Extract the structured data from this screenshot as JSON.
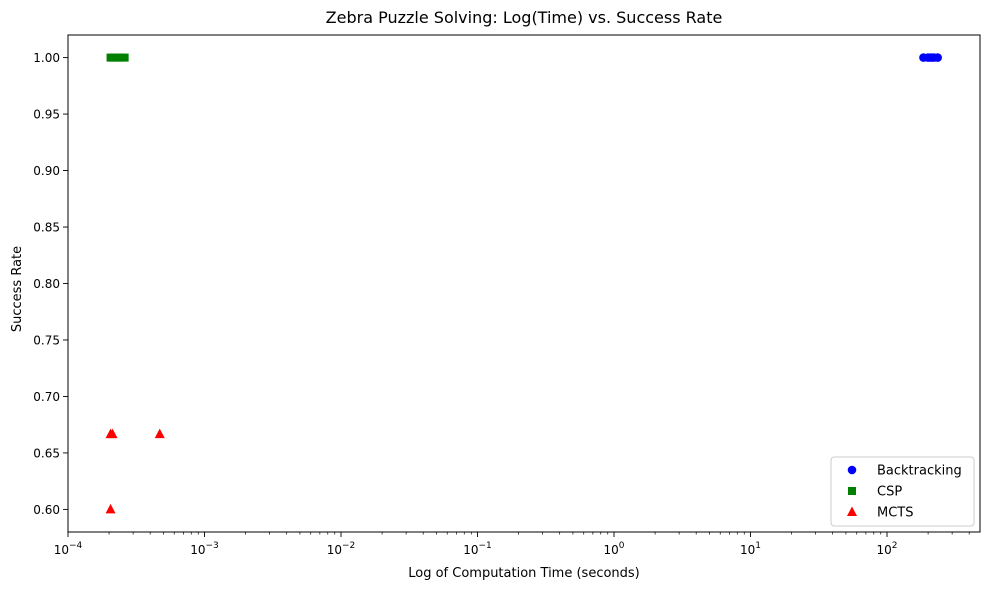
{
  "chart_data": {
    "type": "scatter",
    "title": "Zebra Puzzle Solving: Log(Time) vs. Success Rate",
    "xlabel": "Log of Computation Time (seconds)",
    "ylabel": "Success Rate",
    "xscale": "log",
    "xlim": [
      0.0001,
      480
    ],
    "ylim": [
      0.58,
      1.02
    ],
    "grid": false,
    "legend_position": "lower-right",
    "x_ticks": [
      {
        "value": 0.0001,
        "base": "10",
        "exp": "−4"
      },
      {
        "value": 0.001,
        "base": "10",
        "exp": "−3"
      },
      {
        "value": 0.01,
        "base": "10",
        "exp": "−2"
      },
      {
        "value": 0.1,
        "base": "10",
        "exp": "−1"
      },
      {
        "value": 1,
        "base": "10",
        "exp": "0"
      },
      {
        "value": 10,
        "base": "10",
        "exp": "1"
      },
      {
        "value": 100,
        "base": "10",
        "exp": "2"
      }
    ],
    "y_ticks": [
      {
        "value": 0.6,
        "label": "0.60"
      },
      {
        "value": 0.65,
        "label": "0.65"
      },
      {
        "value": 0.7,
        "label": "0.70"
      },
      {
        "value": 0.75,
        "label": "0.75"
      },
      {
        "value": 0.8,
        "label": "0.80"
      },
      {
        "value": 0.85,
        "label": "0.85"
      },
      {
        "value": 0.9,
        "label": "0.90"
      },
      {
        "value": 0.95,
        "label": "0.95"
      },
      {
        "value": 1.0,
        "label": "1.00"
      }
    ],
    "series": [
      {
        "name": "Backtracking",
        "marker": "circle",
        "color": "#0000ff",
        "points": [
          {
            "x": 185,
            "y": 1.0
          },
          {
            "x": 200,
            "y": 1.0
          },
          {
            "x": 210,
            "y": 1.0
          },
          {
            "x": 220,
            "y": 1.0
          },
          {
            "x": 235,
            "y": 1.0
          }
        ]
      },
      {
        "name": "CSP",
        "marker": "square",
        "color": "#008000",
        "points": [
          {
            "x": 0.000205,
            "y": 1.0
          },
          {
            "x": 0.000215,
            "y": 1.0
          },
          {
            "x": 0.00023,
            "y": 1.0
          },
          {
            "x": 0.000245,
            "y": 1.0
          },
          {
            "x": 0.00026,
            "y": 1.0
          }
        ]
      },
      {
        "name": "MCTS",
        "marker": "triangle",
        "color": "#ff0000",
        "points": [
          {
            "x": 0.000205,
            "y": 0.6667
          },
          {
            "x": 0.000212,
            "y": 0.6667
          },
          {
            "x": 0.00047,
            "y": 0.6667
          },
          {
            "x": 0.000205,
            "y": 0.6
          }
        ]
      }
    ]
  }
}
